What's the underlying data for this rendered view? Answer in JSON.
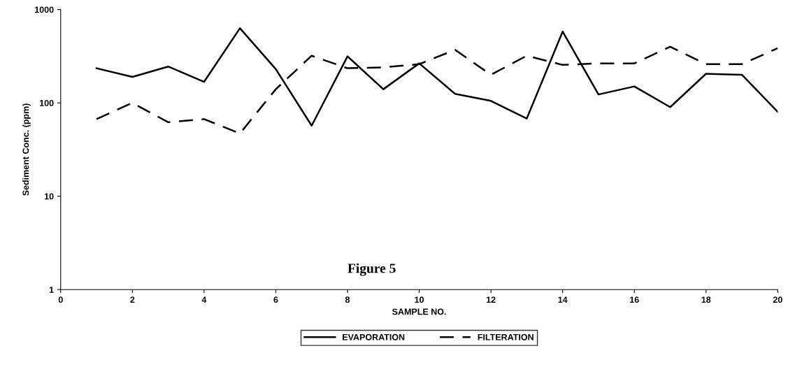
{
  "chart_data": {
    "type": "line",
    "xlabel": "SAMPLE NO.",
    "ylabel": "Sediment Conc. (ppm)",
    "log": "y",
    "grid": false,
    "legend": "bottom",
    "marker": "none",
    "x": [
      1,
      2,
      3,
      4,
      5,
      6,
      7,
      8,
      9,
      10,
      11,
      12,
      13,
      14,
      15,
      16,
      17,
      18,
      19,
      20
    ],
    "xlim": [
      0,
      20
    ],
    "xticks": [
      0,
      2,
      4,
      6,
      8,
      10,
      12,
      14,
      16,
      18,
      20
    ],
    "ylim": [
      1,
      1000
    ],
    "yticks": [
      1,
      10,
      100,
      1000
    ],
    "annotations": [
      "Figure 5"
    ],
    "series": [
      {
        "name": "EVAPORATION",
        "color": "#000000",
        "line_style": "solid",
        "values": [
          235,
          190,
          245,
          168,
          630,
          230,
          57,
          315,
          140,
          265,
          125,
          105,
          68,
          580,
          123,
          150,
          90,
          205,
          200,
          80
        ]
      },
      {
        "name": "FILTERATION",
        "color": "#000000",
        "line_style": "dashed",
        "values": [
          67,
          100,
          62,
          67,
          47,
          140,
          320,
          235,
          240,
          260,
          370,
          200,
          320,
          255,
          265,
          265,
          400,
          260,
          260,
          385
        ]
      }
    ]
  }
}
